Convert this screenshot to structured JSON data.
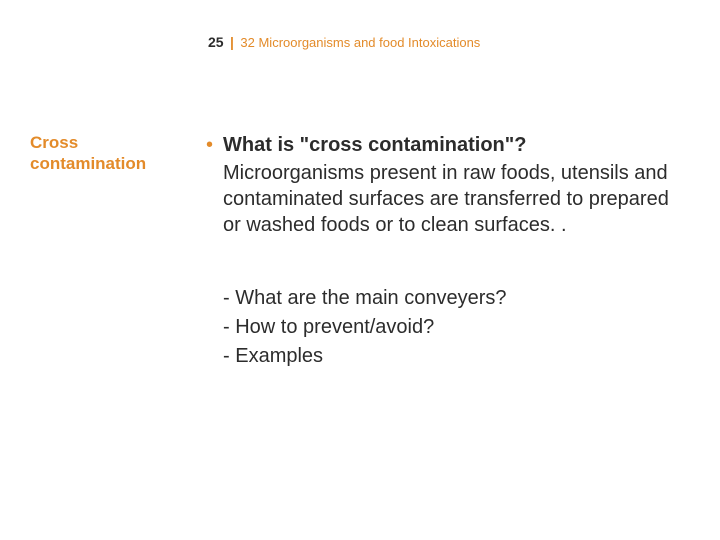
{
  "header": {
    "page_number": "25",
    "divider": "|",
    "chapter_title": "32 Microorganisms and food Intoxications"
  },
  "side_heading": "Cross contamination",
  "main": {
    "bullet_glyph": "•",
    "question_title": "What is \"cross contamination\"?",
    "question_body": "Microorganisms present in raw foods, utensils and contaminated surfaces are transferred to prepared or washed foods or to clean surfaces. .",
    "sub_items": [
      "- What are the main conveyers?",
      "- How to prevent/avoid?",
      "- Examples"
    ]
  },
  "colors": {
    "accent": "#e38b2a",
    "text": "#2c2c2c",
    "background": "#ffffff"
  },
  "typography": {
    "header_page_fontsize": 14,
    "header_chapter_fontsize": 13,
    "side_heading_fontsize": 17,
    "body_fontsize": 20
  }
}
